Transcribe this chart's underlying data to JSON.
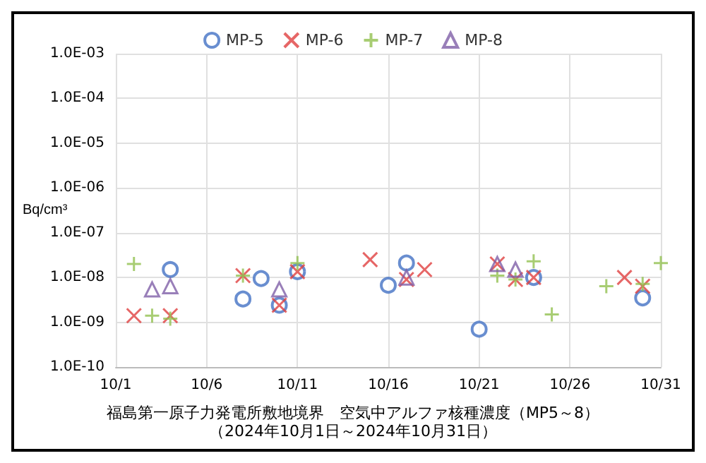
{
  "chart_data": {
    "type": "scatter",
    "xlabel": "福島第一原子力発電所敷地境界　空気中アルファ核種濃度（MP5～8）",
    "ylabel": "Bq/cm³",
    "annotations": [
      "（2024年10月1日～2024年10月31日）"
    ],
    "log": "y",
    "grid": true,
    "legend": "top",
    "xlim": [
      "2024-10-01",
      "2024-10-31"
    ],
    "xticks": [
      {
        "value": "2024-10-01",
        "label": "10/1"
      },
      {
        "value": "2024-10-06",
        "label": "10/6"
      },
      {
        "value": "2024-10-11",
        "label": "10/11"
      },
      {
        "value": "2024-10-16",
        "label": "10/16"
      },
      {
        "value": "2024-10-21",
        "label": "10/21"
      },
      {
        "value": "2024-10-26",
        "label": "10/26"
      },
      {
        "value": "2024-10-31",
        "label": "10/31"
      }
    ],
    "ylim": [
      1e-10,
      0.001
    ],
    "yticks": [
      {
        "value": 1e-10,
        "label": "1.0E-10"
      },
      {
        "value": 1e-09,
        "label": "1.0E-09"
      },
      {
        "value": 1e-08,
        "label": "1.0E-08"
      },
      {
        "value": 1e-07,
        "label": "1.0E-07"
      },
      {
        "value": 1e-06,
        "label": "1.0E-06"
      },
      {
        "value": 1e-05,
        "label": "1.0E-05"
      },
      {
        "value": 0.0001,
        "label": "1.0E-04"
      },
      {
        "value": 0.001,
        "label": "1.0E-03"
      }
    ],
    "series": [
      {
        "name": "MP-5",
        "color": "#4472c4",
        "marker": "circle",
        "x": [
          "2024-10-04",
          "2024-10-08",
          "2024-10-09",
          "2024-10-10",
          "2024-10-11",
          "2024-10-16",
          "2024-10-17",
          "2024-10-21",
          "2024-10-24",
          "2024-10-30"
        ],
        "values": [
          1.5e-08,
          3.3e-09,
          9.5e-09,
          2.4e-09,
          1.35e-08,
          6.7e-09,
          2.1e-08,
          7e-10,
          1e-08,
          3.5e-09
        ]
      },
      {
        "name": "MP-6",
        "color": "#e04040",
        "marker": "cross",
        "x": [
          "2024-10-02",
          "2024-10-04",
          "2024-10-08",
          "2024-10-10",
          "2024-10-11",
          "2024-10-15",
          "2024-10-17",
          "2024-10-18",
          "2024-10-22",
          "2024-10-23",
          "2024-10-24",
          "2024-10-29",
          "2024-10-30"
        ],
        "values": [
          1.4e-09,
          1.4e-09,
          1.1e-08,
          2.4e-09,
          1.35e-08,
          2.5e-08,
          9e-09,
          1.5e-08,
          2e-08,
          9e-09,
          1e-08,
          1e-08,
          6.4e-09
        ]
      },
      {
        "name": "MP-7",
        "color": "#92c050",
        "marker": "plus",
        "x": [
          "2024-10-02",
          "2024-10-03",
          "2024-10-04",
          "2024-10-08",
          "2024-10-11",
          "2024-10-22",
          "2024-10-23",
          "2024-10-24",
          "2024-10-25",
          "2024-10-28",
          "2024-10-30",
          "2024-10-31"
        ],
        "values": [
          2e-08,
          1.4e-09,
          1.2e-09,
          1.1e-08,
          2.1e-08,
          1.1e-08,
          9e-09,
          2.3e-08,
          1.5e-09,
          6.4e-09,
          7.2e-09,
          2.1e-08
        ]
      },
      {
        "name": "MP-8",
        "color": "#7f5fa8",
        "marker": "triangle",
        "x": [
          "2024-10-03",
          "2024-10-04",
          "2024-10-10",
          "2024-10-17",
          "2024-10-22",
          "2024-10-23"
        ],
        "values": [
          5.4e-09,
          6.4e-09,
          5.4e-09,
          1e-08,
          2e-08,
          1.5e-08
        ]
      }
    ]
  }
}
